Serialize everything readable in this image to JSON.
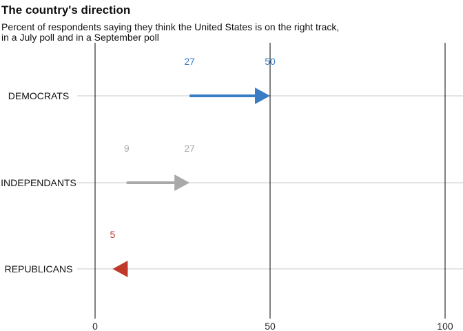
{
  "title": "The country's direction",
  "subtitle_lines": [
    "Percent of respondents saying they think the United States is on the right track,",
    "in a July poll and in a September poll"
  ],
  "chart_data": {
    "type": "arrow",
    "title": "The country's direction",
    "subtitle": "Percent of respondents saying they think the United States is on the right track, in a July poll and in a September poll",
    "categories": [
      "DEMOCRATS",
      "INDEPENDANTS",
      "REPUBLICANS"
    ],
    "series": [
      {
        "category": "DEMOCRATS",
        "july": 27,
        "september": 50,
        "color": "#3a7dc4",
        "label_color": "#3a7dc4",
        "labels": [
          "27",
          "50"
        ]
      },
      {
        "category": "INDEPENDANTS",
        "july": 9,
        "september": 27,
        "color": "#a9a9a9",
        "label_color": "#a9a9a9",
        "labels": [
          "9",
          "27"
        ]
      },
      {
        "category": "REPUBLICANS",
        "july": 9,
        "september": 5,
        "color": "#c0392b",
        "label_color": "#c0392b",
        "labels": [
          "5"
        ]
      }
    ],
    "xlim": [
      0,
      100
    ],
    "xticks": [
      0,
      50,
      100
    ],
    "xtick_labels": [
      "0",
      "50",
      "100"
    ],
    "grid": true
  }
}
